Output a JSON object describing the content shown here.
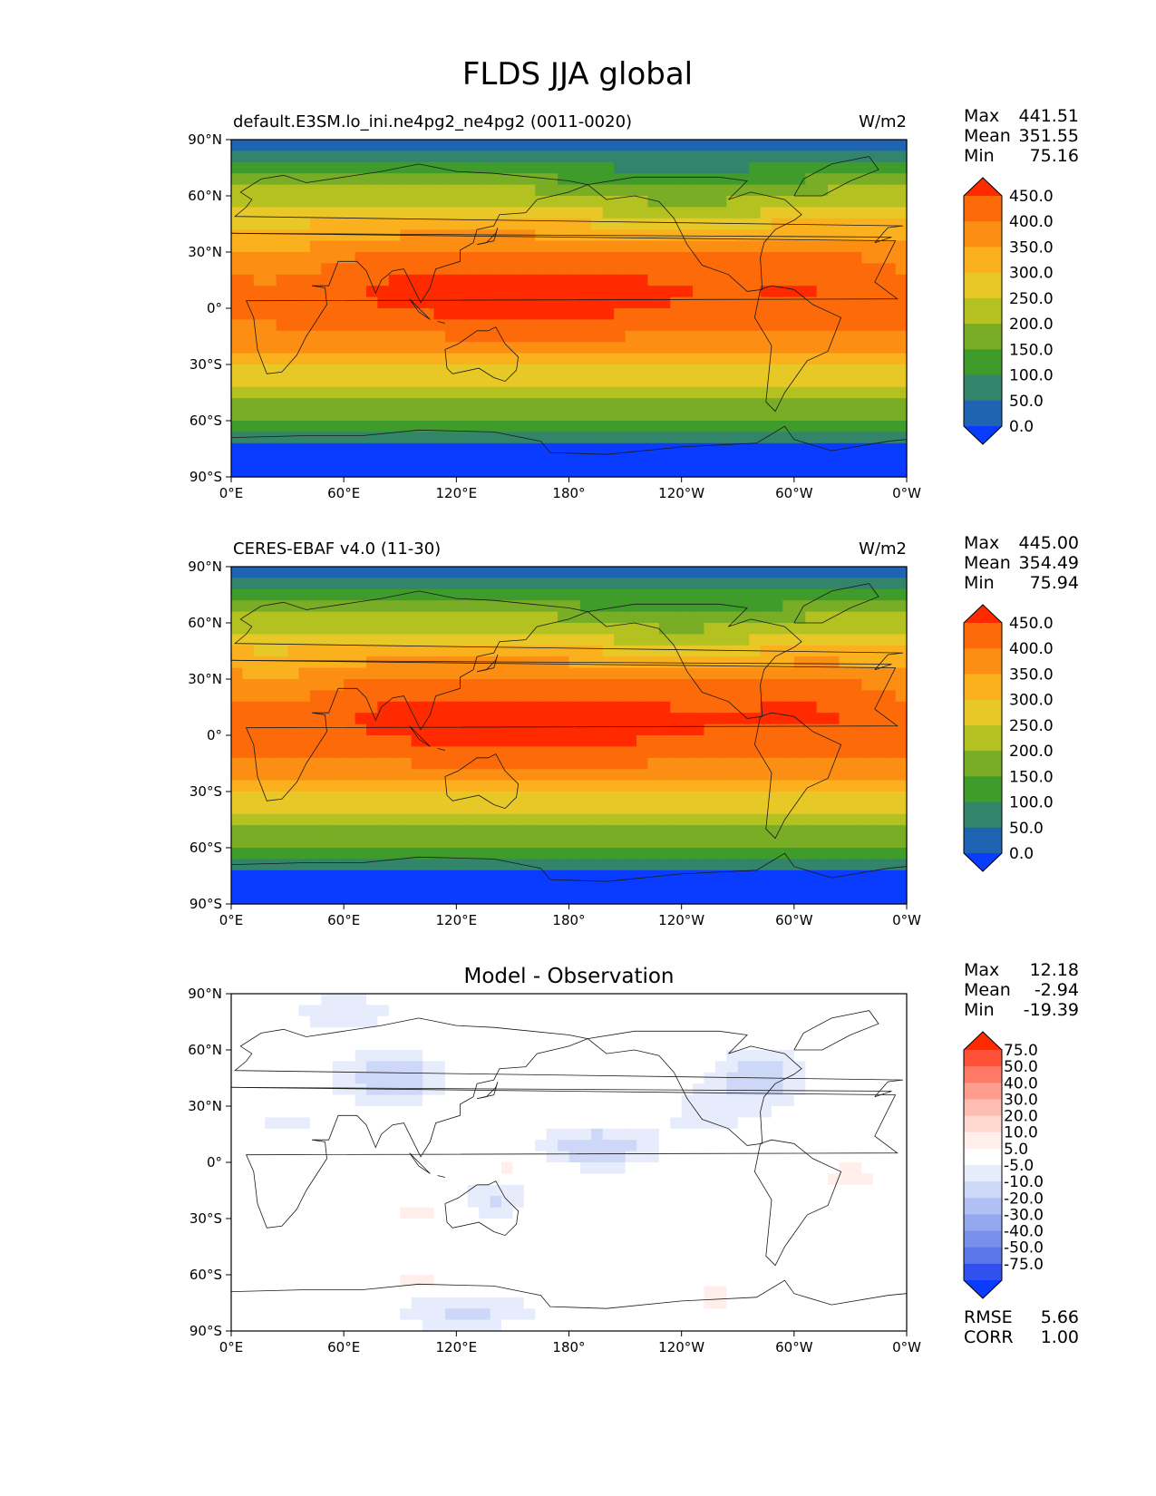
{
  "figure": {
    "title": "FLDS JJA global"
  },
  "axes": {
    "lat_ticks": [
      "90°N",
      "60°N",
      "30°N",
      "0°",
      "30°S",
      "60°S",
      "90°S"
    ],
    "lon_ticks": [
      "0°E",
      "60°E",
      "120°E",
      "180°",
      "120°W",
      "60°W",
      "0°W"
    ]
  },
  "chart_data": [
    {
      "type": "heatmap",
      "name": "model",
      "title": "default.E3SM.lo_ini.ne4pg2_ne4pg2 (0011-0020)",
      "units": "W/m2",
      "stats": {
        "max_label": "Max",
        "mean_label": "Mean",
        "min_label": "Min",
        "max": "441.51",
        "mean": "351.55",
        "min": "75.16"
      },
      "xlim": [
        0,
        360
      ],
      "ylim": [
        -90,
        90
      ],
      "colorbar": {
        "levels": [
          "450.0",
          "400.0",
          "350.0",
          "300.0",
          "250.0",
          "200.0",
          "150.0",
          "100.0",
          "50.0",
          "0.0"
        ],
        "colors": [
          "#ff2a00",
          "#fd6a0a",
          "#fc8e14",
          "#fbb01e",
          "#e8c827",
          "#b3c220",
          "#79ad25",
          "#3f9c2b",
          "#32856b",
          "#1e64b3",
          "#0a3cff"
        ]
      }
    },
    {
      "type": "heatmap",
      "name": "observation",
      "title": "CERES-EBAF v4.0 (11-30)",
      "units": "W/m2",
      "stats": {
        "max_label": "Max",
        "mean_label": "Mean",
        "min_label": "Min",
        "max": "445.00",
        "mean": "354.49",
        "min": "75.94"
      },
      "xlim": [
        0,
        360
      ],
      "ylim": [
        -90,
        90
      ],
      "colorbar": {
        "levels": [
          "450.0",
          "400.0",
          "350.0",
          "300.0",
          "250.0",
          "200.0",
          "150.0",
          "100.0",
          "50.0",
          "0.0"
        ],
        "colors": [
          "#ff2a00",
          "#fd6a0a",
          "#fc8e14",
          "#fbb01e",
          "#e8c827",
          "#b3c220",
          "#79ad25",
          "#3f9c2b",
          "#32856b",
          "#1e64b3",
          "#0a3cff"
        ]
      }
    },
    {
      "type": "heatmap",
      "name": "difference",
      "title": "Model - Observation",
      "stats": {
        "max_label": "Max",
        "mean_label": "Mean",
        "min_label": "Min",
        "max": "12.18",
        "mean": "-2.94",
        "min": "-19.39",
        "rmse_label": "RMSE",
        "rmse": "5.66",
        "corr_label": "CORR",
        "corr": "1.00"
      },
      "xlim": [
        0,
        360
      ],
      "ylim": [
        -90,
        90
      ],
      "colorbar": {
        "levels": [
          "75.0",
          "50.0",
          "40.0",
          "30.0",
          "20.0",
          "10.0",
          "5.0",
          "-5.0",
          "-10.0",
          "-20.0",
          "-30.0",
          "-40.0",
          "-50.0",
          "-75.0"
        ],
        "colors": [
          "#ff2a00",
          "#ff5038",
          "#ff7a66",
          "#ff9c8c",
          "#ffbcb0",
          "#ffd8d0",
          "#ffeeea",
          "#ffffff",
          "#e6ecfc",
          "#cdd8f8",
          "#b0c0f4",
          "#94a8f0",
          "#7890ec",
          "#5c78e8",
          "#3050f0",
          "#0a3cff"
        ]
      }
    }
  ]
}
